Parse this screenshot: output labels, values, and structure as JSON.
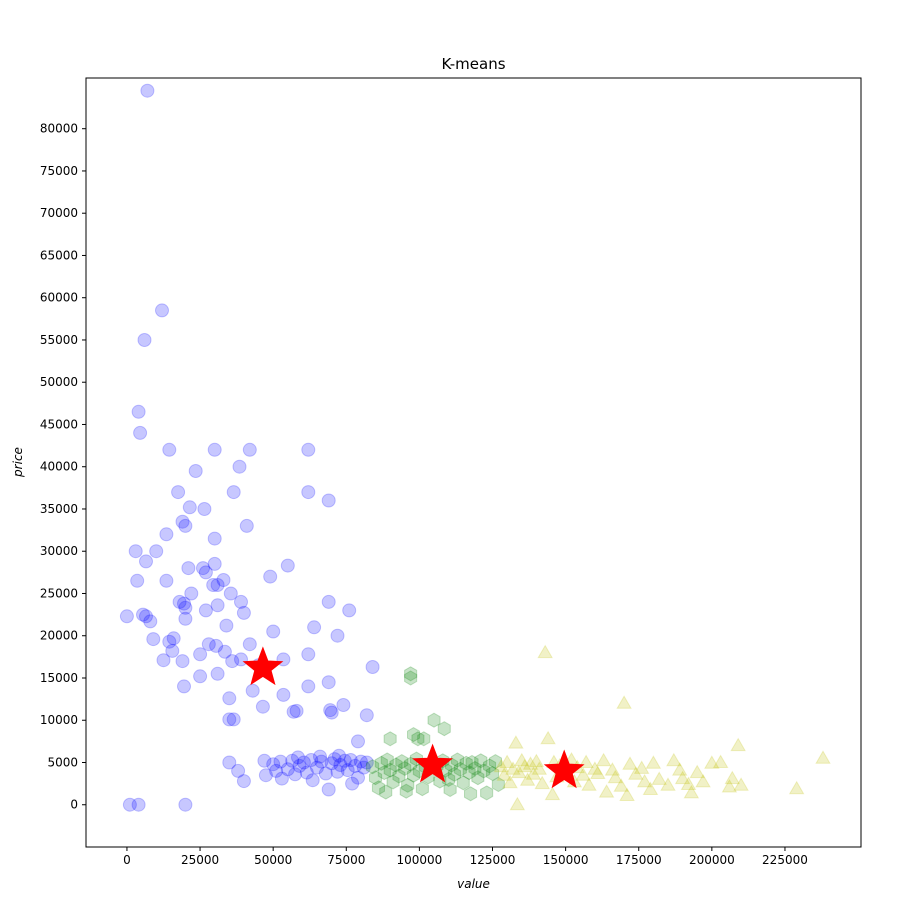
{
  "chart_data": {
    "type": "scatter",
    "title": "K-means",
    "xlabel": "value",
    "ylabel": "price",
    "xlim": [
      -14000,
      251000
    ],
    "ylim": [
      -5000,
      86000
    ],
    "x_ticks": [
      0,
      25000,
      50000,
      75000,
      100000,
      125000,
      150000,
      175000,
      200000,
      225000
    ],
    "y_ticks": [
      0,
      5000,
      10000,
      15000,
      20000,
      25000,
      30000,
      35000,
      40000,
      45000,
      50000,
      55000,
      60000,
      65000,
      70000,
      75000,
      80000
    ],
    "grid": false,
    "legend": "none",
    "colors": {
      "cluster_blue": "#0000ff",
      "cluster_green": "#008000",
      "cluster_yellow": "#bfbf00",
      "centroid": "#ff0000"
    },
    "series": [
      {
        "marker": "circle",
        "color": "#0000ff",
        "points": [
          [
            7000,
            84500
          ],
          [
            12000,
            58500
          ],
          [
            6000,
            55000
          ],
          [
            4000,
            46500
          ],
          [
            4500,
            44000
          ],
          [
            14500,
            42000
          ],
          [
            30000,
            42000
          ],
          [
            42000,
            42000
          ],
          [
            62000,
            42000
          ],
          [
            38500,
            40000
          ],
          [
            23500,
            39500
          ],
          [
            17500,
            37000
          ],
          [
            36500,
            37000
          ],
          [
            62000,
            37000
          ],
          [
            69000,
            36000
          ],
          [
            21500,
            35200
          ],
          [
            26500,
            35000
          ],
          [
            19000,
            33500
          ],
          [
            20000,
            33000
          ],
          [
            41000,
            33000
          ],
          [
            13500,
            32000
          ],
          [
            30000,
            31500
          ],
          [
            10000,
            30000
          ],
          [
            3000,
            30000
          ],
          [
            6500,
            28800
          ],
          [
            55000,
            28300
          ],
          [
            30000,
            28500
          ],
          [
            21000,
            28000
          ],
          [
            26000,
            28000
          ],
          [
            27000,
            27500
          ],
          [
            49000,
            27000
          ],
          [
            3500,
            26500
          ],
          [
            13500,
            26500
          ],
          [
            33000,
            26600
          ],
          [
            29500,
            26000
          ],
          [
            31000,
            26000
          ],
          [
            22000,
            25000
          ],
          [
            35500,
            25000
          ],
          [
            18000,
            24000
          ],
          [
            39000,
            24000
          ],
          [
            69000,
            24000
          ],
          [
            19500,
            23800
          ],
          [
            31000,
            23600
          ],
          [
            27000,
            23000
          ],
          [
            20000,
            23300
          ],
          [
            76000,
            23000
          ],
          [
            40000,
            22700
          ],
          [
            0,
            22300
          ],
          [
            5500,
            22500
          ],
          [
            6500,
            22300
          ],
          [
            8000,
            21700
          ],
          [
            20000,
            22000
          ],
          [
            64000,
            21000
          ],
          [
            34000,
            21200
          ],
          [
            50000,
            20500
          ],
          [
            16000,
            19700
          ],
          [
            9000,
            19600
          ],
          [
            14500,
            19300
          ],
          [
            28000,
            19000
          ],
          [
            30500,
            18800
          ],
          [
            42000,
            19000
          ],
          [
            72000,
            20000
          ],
          [
            15500,
            18200
          ],
          [
            33500,
            18100
          ],
          [
            25000,
            17800
          ],
          [
            62000,
            17800
          ],
          [
            19000,
            17000
          ],
          [
            36000,
            17000
          ],
          [
            39000,
            17200
          ],
          [
            53500,
            17200
          ],
          [
            12500,
            17100
          ],
          [
            31000,
            15500
          ],
          [
            25000,
            15200
          ],
          [
            45000,
            16500
          ],
          [
            84000,
            16300
          ],
          [
            19500,
            14000
          ],
          [
            62000,
            14000
          ],
          [
            69000,
            14500
          ],
          [
            43000,
            13500
          ],
          [
            35000,
            12600
          ],
          [
            53500,
            13000
          ],
          [
            46500,
            11600
          ],
          [
            58000,
            11100
          ],
          [
            69500,
            11200
          ],
          [
            74000,
            11800
          ],
          [
            57000,
            11000
          ],
          [
            70000,
            10900
          ],
          [
            82000,
            10600
          ],
          [
            35000,
            10100
          ],
          [
            36500,
            10100
          ],
          [
            79000,
            7500
          ],
          [
            1000,
            0
          ],
          [
            4000,
            0
          ],
          [
            20000,
            0
          ],
          [
            35000,
            5000
          ],
          [
            38000,
            4000
          ],
          [
            40000,
            2800
          ],
          [
            47000,
            5200
          ],
          [
            47500,
            3500
          ],
          [
            50000,
            4800
          ],
          [
            51000,
            4000
          ],
          [
            52500,
            5100
          ],
          [
            53000,
            3100
          ],
          [
            55000,
            4200
          ],
          [
            56500,
            5200
          ],
          [
            57500,
            3600
          ],
          [
            59000,
            4600
          ],
          [
            60500,
            5000
          ],
          [
            61500,
            3800
          ],
          [
            63000,
            5300
          ],
          [
            63500,
            2900
          ],
          [
            65000,
            4400
          ],
          [
            66500,
            5100
          ],
          [
            68000,
            3700
          ],
          [
            69000,
            1800
          ],
          [
            70000,
            4900
          ],
          [
            71000,
            5400
          ],
          [
            72000,
            3900
          ],
          [
            73000,
            4700
          ],
          [
            74500,
            5200
          ],
          [
            75500,
            4100
          ],
          [
            76500,
            5300
          ],
          [
            77000,
            2500
          ],
          [
            78000,
            4600
          ],
          [
            79000,
            3200
          ],
          [
            80000,
            5100
          ],
          [
            81000,
            4400
          ],
          [
            82000,
            5000
          ],
          [
            72500,
            5800
          ],
          [
            66000,
            5700
          ],
          [
            58500,
            5600
          ]
        ]
      },
      {
        "marker": "hexagon",
        "color": "#008000",
        "points": [
          [
            97000,
            15500
          ],
          [
            97000,
            15000
          ],
          [
            105000,
            10000
          ],
          [
            108500,
            9000
          ],
          [
            90000,
            7800
          ],
          [
            98000,
            8300
          ],
          [
            99500,
            7800
          ],
          [
            101500,
            7800
          ],
          [
            84000,
            4500
          ],
          [
            85000,
            3200
          ],
          [
            86000,
            2000
          ],
          [
            87000,
            4900
          ],
          [
            88000,
            3800
          ],
          [
            89000,
            5300
          ],
          [
            90000,
            4100
          ],
          [
            91000,
            2700
          ],
          [
            92000,
            4700
          ],
          [
            93000,
            3400
          ],
          [
            94000,
            5100
          ],
          [
            95000,
            4300
          ],
          [
            96000,
            2300
          ],
          [
            97000,
            4800
          ],
          [
            98000,
            3500
          ],
          [
            99000,
            5400
          ],
          [
            100000,
            4000
          ],
          [
            101000,
            1900
          ],
          [
            102000,
            4500
          ],
          [
            103000,
            3300
          ],
          [
            104000,
            4800
          ],
          [
            106000,
            4600
          ],
          [
            107000,
            2800
          ],
          [
            108000,
            5200
          ],
          [
            109000,
            4100
          ],
          [
            110000,
            3000
          ],
          [
            111000,
            4700
          ],
          [
            112000,
            3600
          ],
          [
            113000,
            5300
          ],
          [
            114000,
            4200
          ],
          [
            115000,
            2600
          ],
          [
            116000,
            4900
          ],
          [
            117000,
            3800
          ],
          [
            118000,
            5000
          ],
          [
            119000,
            4300
          ],
          [
            120000,
            3200
          ],
          [
            121000,
            5200
          ],
          [
            122000,
            4000
          ],
          [
            123000,
            1400
          ],
          [
            124000,
            4600
          ],
          [
            125000,
            3700
          ],
          [
            126000,
            5100
          ],
          [
            127000,
            2400
          ],
          [
            110500,
            1800
          ],
          [
            95500,
            1600
          ],
          [
            88500,
            1500
          ],
          [
            117500,
            1300
          ]
        ]
      },
      {
        "marker": "triangle",
        "color": "#bfbf00",
        "points": [
          [
            143000,
            18000
          ],
          [
            170000,
            12000
          ],
          [
            144000,
            7800
          ],
          [
            133000,
            7300
          ],
          [
            209000,
            7000
          ],
          [
            133500,
            0
          ],
          [
            145500,
            1200
          ],
          [
            128000,
            4500
          ],
          [
            129000,
            3500
          ],
          [
            130000,
            5000
          ],
          [
            131000,
            2600
          ],
          [
            132000,
            4200
          ],
          [
            134000,
            3800
          ],
          [
            135000,
            5200
          ],
          [
            136000,
            4500
          ],
          [
            137000,
            2900
          ],
          [
            138000,
            4800
          ],
          [
            139000,
            3600
          ],
          [
            140000,
            5100
          ],
          [
            141000,
            4200
          ],
          [
            142000,
            2500
          ],
          [
            146000,
            5000
          ],
          [
            147000,
            3300
          ],
          [
            148000,
            4600
          ],
          [
            150000,
            3900
          ],
          [
            152000,
            5300
          ],
          [
            153000,
            2700
          ],
          [
            154000,
            4400
          ],
          [
            156000,
            3500
          ],
          [
            157000,
            5000
          ],
          [
            158000,
            2300
          ],
          [
            160000,
            4200
          ],
          [
            161000,
            3700
          ],
          [
            163000,
            5200
          ],
          [
            164000,
            1500
          ],
          [
            166000,
            4100
          ],
          [
            167000,
            3200
          ],
          [
            169000,
            2200
          ],
          [
            171000,
            1100
          ],
          [
            172000,
            4800
          ],
          [
            174000,
            3600
          ],
          [
            176000,
            4300
          ],
          [
            177000,
            2700
          ],
          [
            179000,
            1800
          ],
          [
            180000,
            4900
          ],
          [
            182000,
            3000
          ],
          [
            185000,
            2300
          ],
          [
            187000,
            5200
          ],
          [
            189000,
            4100
          ],
          [
            190000,
            3100
          ],
          [
            192000,
            2400
          ],
          [
            193000,
            1400
          ],
          [
            195000,
            3800
          ],
          [
            197000,
            2700
          ],
          [
            200000,
            4900
          ],
          [
            203000,
            5000
          ],
          [
            206000,
            2100
          ],
          [
            207000,
            3100
          ],
          [
            210000,
            2300
          ],
          [
            229000,
            1900
          ],
          [
            238000,
            5500
          ]
        ]
      }
    ],
    "centroids": [
      [
        46500,
        16200
      ],
      [
        104500,
        4700
      ],
      [
        149500,
        4000
      ]
    ]
  }
}
